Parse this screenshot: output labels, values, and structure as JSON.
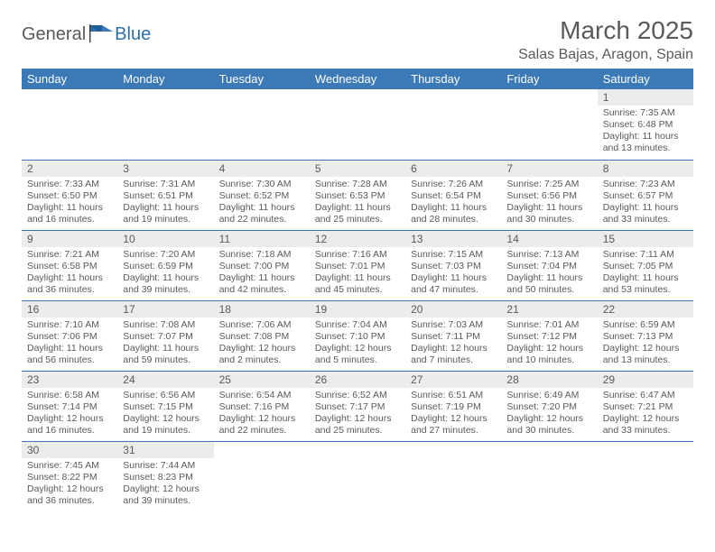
{
  "logo": {
    "text1": "General",
    "text2": "Blue"
  },
  "title": "March 2025",
  "location": "Salas Bajas, Aragon, Spain",
  "colors": {
    "header_bg": "#3b79b7",
    "header_text": "#ffffff",
    "daynum_bg": "#ececec",
    "text": "#5a5a5a",
    "rule": "#3b79b7",
    "brand_blue": "#2f6fa8"
  },
  "weekdays": [
    "Sunday",
    "Monday",
    "Tuesday",
    "Wednesday",
    "Thursday",
    "Friday",
    "Saturday"
  ],
  "days": {
    "1": {
      "sunrise": "7:35 AM",
      "sunset": "6:48 PM",
      "daylight": "11 hours and 13 minutes."
    },
    "2": {
      "sunrise": "7:33 AM",
      "sunset": "6:50 PM",
      "daylight": "11 hours and 16 minutes."
    },
    "3": {
      "sunrise": "7:31 AM",
      "sunset": "6:51 PM",
      "daylight": "11 hours and 19 minutes."
    },
    "4": {
      "sunrise": "7:30 AM",
      "sunset": "6:52 PM",
      "daylight": "11 hours and 22 minutes."
    },
    "5": {
      "sunrise": "7:28 AM",
      "sunset": "6:53 PM",
      "daylight": "11 hours and 25 minutes."
    },
    "6": {
      "sunrise": "7:26 AM",
      "sunset": "6:54 PM",
      "daylight": "11 hours and 28 minutes."
    },
    "7": {
      "sunrise": "7:25 AM",
      "sunset": "6:56 PM",
      "daylight": "11 hours and 30 minutes."
    },
    "8": {
      "sunrise": "7:23 AM",
      "sunset": "6:57 PM",
      "daylight": "11 hours and 33 minutes."
    },
    "9": {
      "sunrise": "7:21 AM",
      "sunset": "6:58 PM",
      "daylight": "11 hours and 36 minutes."
    },
    "10": {
      "sunrise": "7:20 AM",
      "sunset": "6:59 PM",
      "daylight": "11 hours and 39 minutes."
    },
    "11": {
      "sunrise": "7:18 AM",
      "sunset": "7:00 PM",
      "daylight": "11 hours and 42 minutes."
    },
    "12": {
      "sunrise": "7:16 AM",
      "sunset": "7:01 PM",
      "daylight": "11 hours and 45 minutes."
    },
    "13": {
      "sunrise": "7:15 AM",
      "sunset": "7:03 PM",
      "daylight": "11 hours and 47 minutes."
    },
    "14": {
      "sunrise": "7:13 AM",
      "sunset": "7:04 PM",
      "daylight": "11 hours and 50 minutes."
    },
    "15": {
      "sunrise": "7:11 AM",
      "sunset": "7:05 PM",
      "daylight": "11 hours and 53 minutes."
    },
    "16": {
      "sunrise": "7:10 AM",
      "sunset": "7:06 PM",
      "daylight": "11 hours and 56 minutes."
    },
    "17": {
      "sunrise": "7:08 AM",
      "sunset": "7:07 PM",
      "daylight": "11 hours and 59 minutes."
    },
    "18": {
      "sunrise": "7:06 AM",
      "sunset": "7:08 PM",
      "daylight": "12 hours and 2 minutes."
    },
    "19": {
      "sunrise": "7:04 AM",
      "sunset": "7:10 PM",
      "daylight": "12 hours and 5 minutes."
    },
    "20": {
      "sunrise": "7:03 AM",
      "sunset": "7:11 PM",
      "daylight": "12 hours and 7 minutes."
    },
    "21": {
      "sunrise": "7:01 AM",
      "sunset": "7:12 PM",
      "daylight": "12 hours and 10 minutes."
    },
    "22": {
      "sunrise": "6:59 AM",
      "sunset": "7:13 PM",
      "daylight": "12 hours and 13 minutes."
    },
    "23": {
      "sunrise": "6:58 AM",
      "sunset": "7:14 PM",
      "daylight": "12 hours and 16 minutes."
    },
    "24": {
      "sunrise": "6:56 AM",
      "sunset": "7:15 PM",
      "daylight": "12 hours and 19 minutes."
    },
    "25": {
      "sunrise": "6:54 AM",
      "sunset": "7:16 PM",
      "daylight": "12 hours and 22 minutes."
    },
    "26": {
      "sunrise": "6:52 AM",
      "sunset": "7:17 PM",
      "daylight": "12 hours and 25 minutes."
    },
    "27": {
      "sunrise": "6:51 AM",
      "sunset": "7:19 PM",
      "daylight": "12 hours and 27 minutes."
    },
    "28": {
      "sunrise": "6:49 AM",
      "sunset": "7:20 PM",
      "daylight": "12 hours and 30 minutes."
    },
    "29": {
      "sunrise": "6:47 AM",
      "sunset": "7:21 PM",
      "daylight": "12 hours and 33 minutes."
    },
    "30": {
      "sunrise": "7:45 AM",
      "sunset": "8:22 PM",
      "daylight": "12 hours and 36 minutes."
    },
    "31": {
      "sunrise": "7:44 AM",
      "sunset": "8:23 PM",
      "daylight": "12 hours and 39 minutes."
    }
  },
  "grid": [
    [
      null,
      null,
      null,
      null,
      null,
      null,
      "1"
    ],
    [
      "2",
      "3",
      "4",
      "5",
      "6",
      "7",
      "8"
    ],
    [
      "9",
      "10",
      "11",
      "12",
      "13",
      "14",
      "15"
    ],
    [
      "16",
      "17",
      "18",
      "19",
      "20",
      "21",
      "22"
    ],
    [
      "23",
      "24",
      "25",
      "26",
      "27",
      "28",
      "29"
    ],
    [
      "30",
      "31",
      null,
      null,
      null,
      null,
      null
    ]
  ],
  "labels": {
    "sunrise_prefix": "Sunrise: ",
    "sunset_prefix": "Sunset: ",
    "daylight_prefix": "Daylight: "
  }
}
